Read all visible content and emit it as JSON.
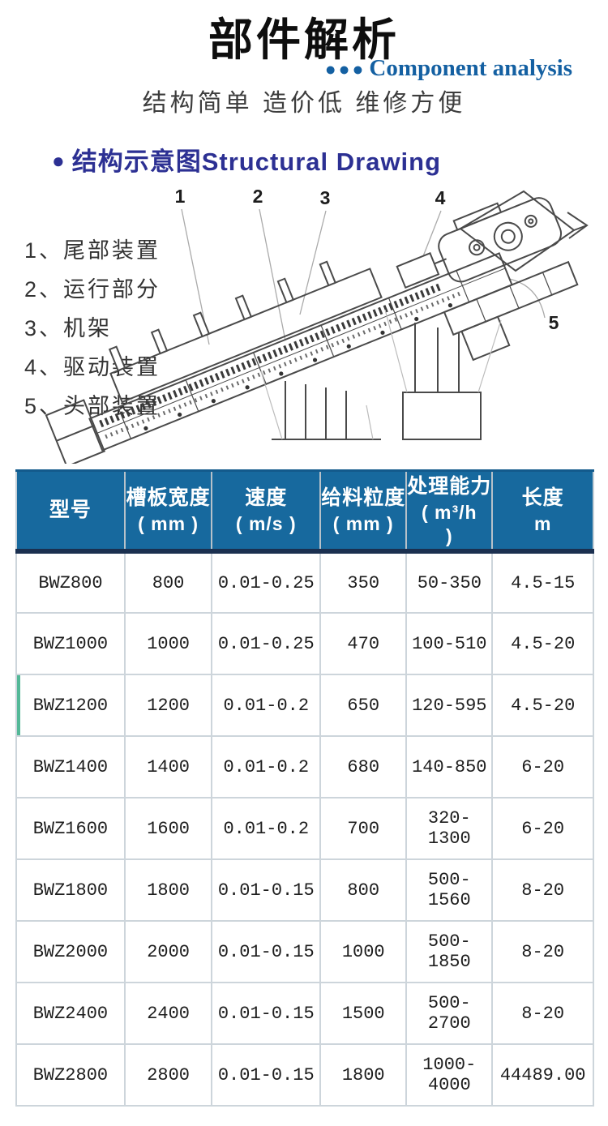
{
  "page": {
    "title": "部件解析",
    "subtitle_dots": "●●●",
    "subtitle_en": "Component analysis",
    "tagline": "结构简单 造价低 维修方便"
  },
  "section": {
    "bullet": "●",
    "heading": "结构示意图Structural Drawing"
  },
  "parts_list": [
    "1、尾部装置",
    "2、运行部分",
    "3、机架",
    "4、驱动装置",
    "5、头部装置"
  ],
  "drawing": {
    "callouts": [
      "1",
      "2",
      "3",
      "4",
      "5"
    ]
  },
  "table": {
    "headers": [
      {
        "lines": [
          "型号"
        ]
      },
      {
        "lines": [
          "槽板宽度",
          "( mm )"
        ]
      },
      {
        "lines": [
          "速度",
          "( m/s )"
        ]
      },
      {
        "lines": [
          "给料粒度",
          "( mm )"
        ]
      },
      {
        "lines": [
          "处理能力",
          "( m³/h",
          ")"
        ]
      },
      {
        "lines": [
          "长度",
          "m"
        ]
      }
    ],
    "rows": [
      [
        "BWZ800",
        "800",
        "0.01-0.25",
        "350",
        "50-350",
        "4.5-15"
      ],
      [
        "BWZ1000",
        "1000",
        "0.01-0.25",
        "470",
        "100-510",
        "4.5-20"
      ],
      [
        "BWZ1200",
        "1200",
        "0.01-0.2",
        "650",
        "120-595",
        "4.5-20"
      ],
      [
        "BWZ1400",
        "1400",
        "0.01-0.2",
        "680",
        "140-850",
        "6-20"
      ],
      [
        "BWZ1600",
        "1600",
        "0.01-0.2",
        "700",
        "320-1300",
        "6-20"
      ],
      [
        "BWZ1800",
        "1800",
        "0.01-0.15",
        "800",
        "500-1560",
        "8-20"
      ],
      [
        "BWZ2000",
        "2000",
        "0.01-0.15",
        "1000",
        "500-1850",
        "8-20"
      ],
      [
        "BWZ2400",
        "2400",
        "0.01-0.15",
        "1500",
        "500-2700",
        "8-20"
      ],
      [
        "BWZ2800",
        "2800",
        "0.01-0.15",
        "1800",
        "1000-4000",
        "44489.00"
      ]
    ]
  },
  "colors": {
    "title_text": "#0e0e0e",
    "subtitle_blue": "#1460a2",
    "section_navy": "#2c3093",
    "table_header_bg": "#17699e",
    "table_header_text": "#ffffff",
    "table_header_divider": "#1b3050",
    "table_border": "#cdd5db",
    "teal_row_mark": "#53b897",
    "drawing_line": "#4a4a4a"
  }
}
